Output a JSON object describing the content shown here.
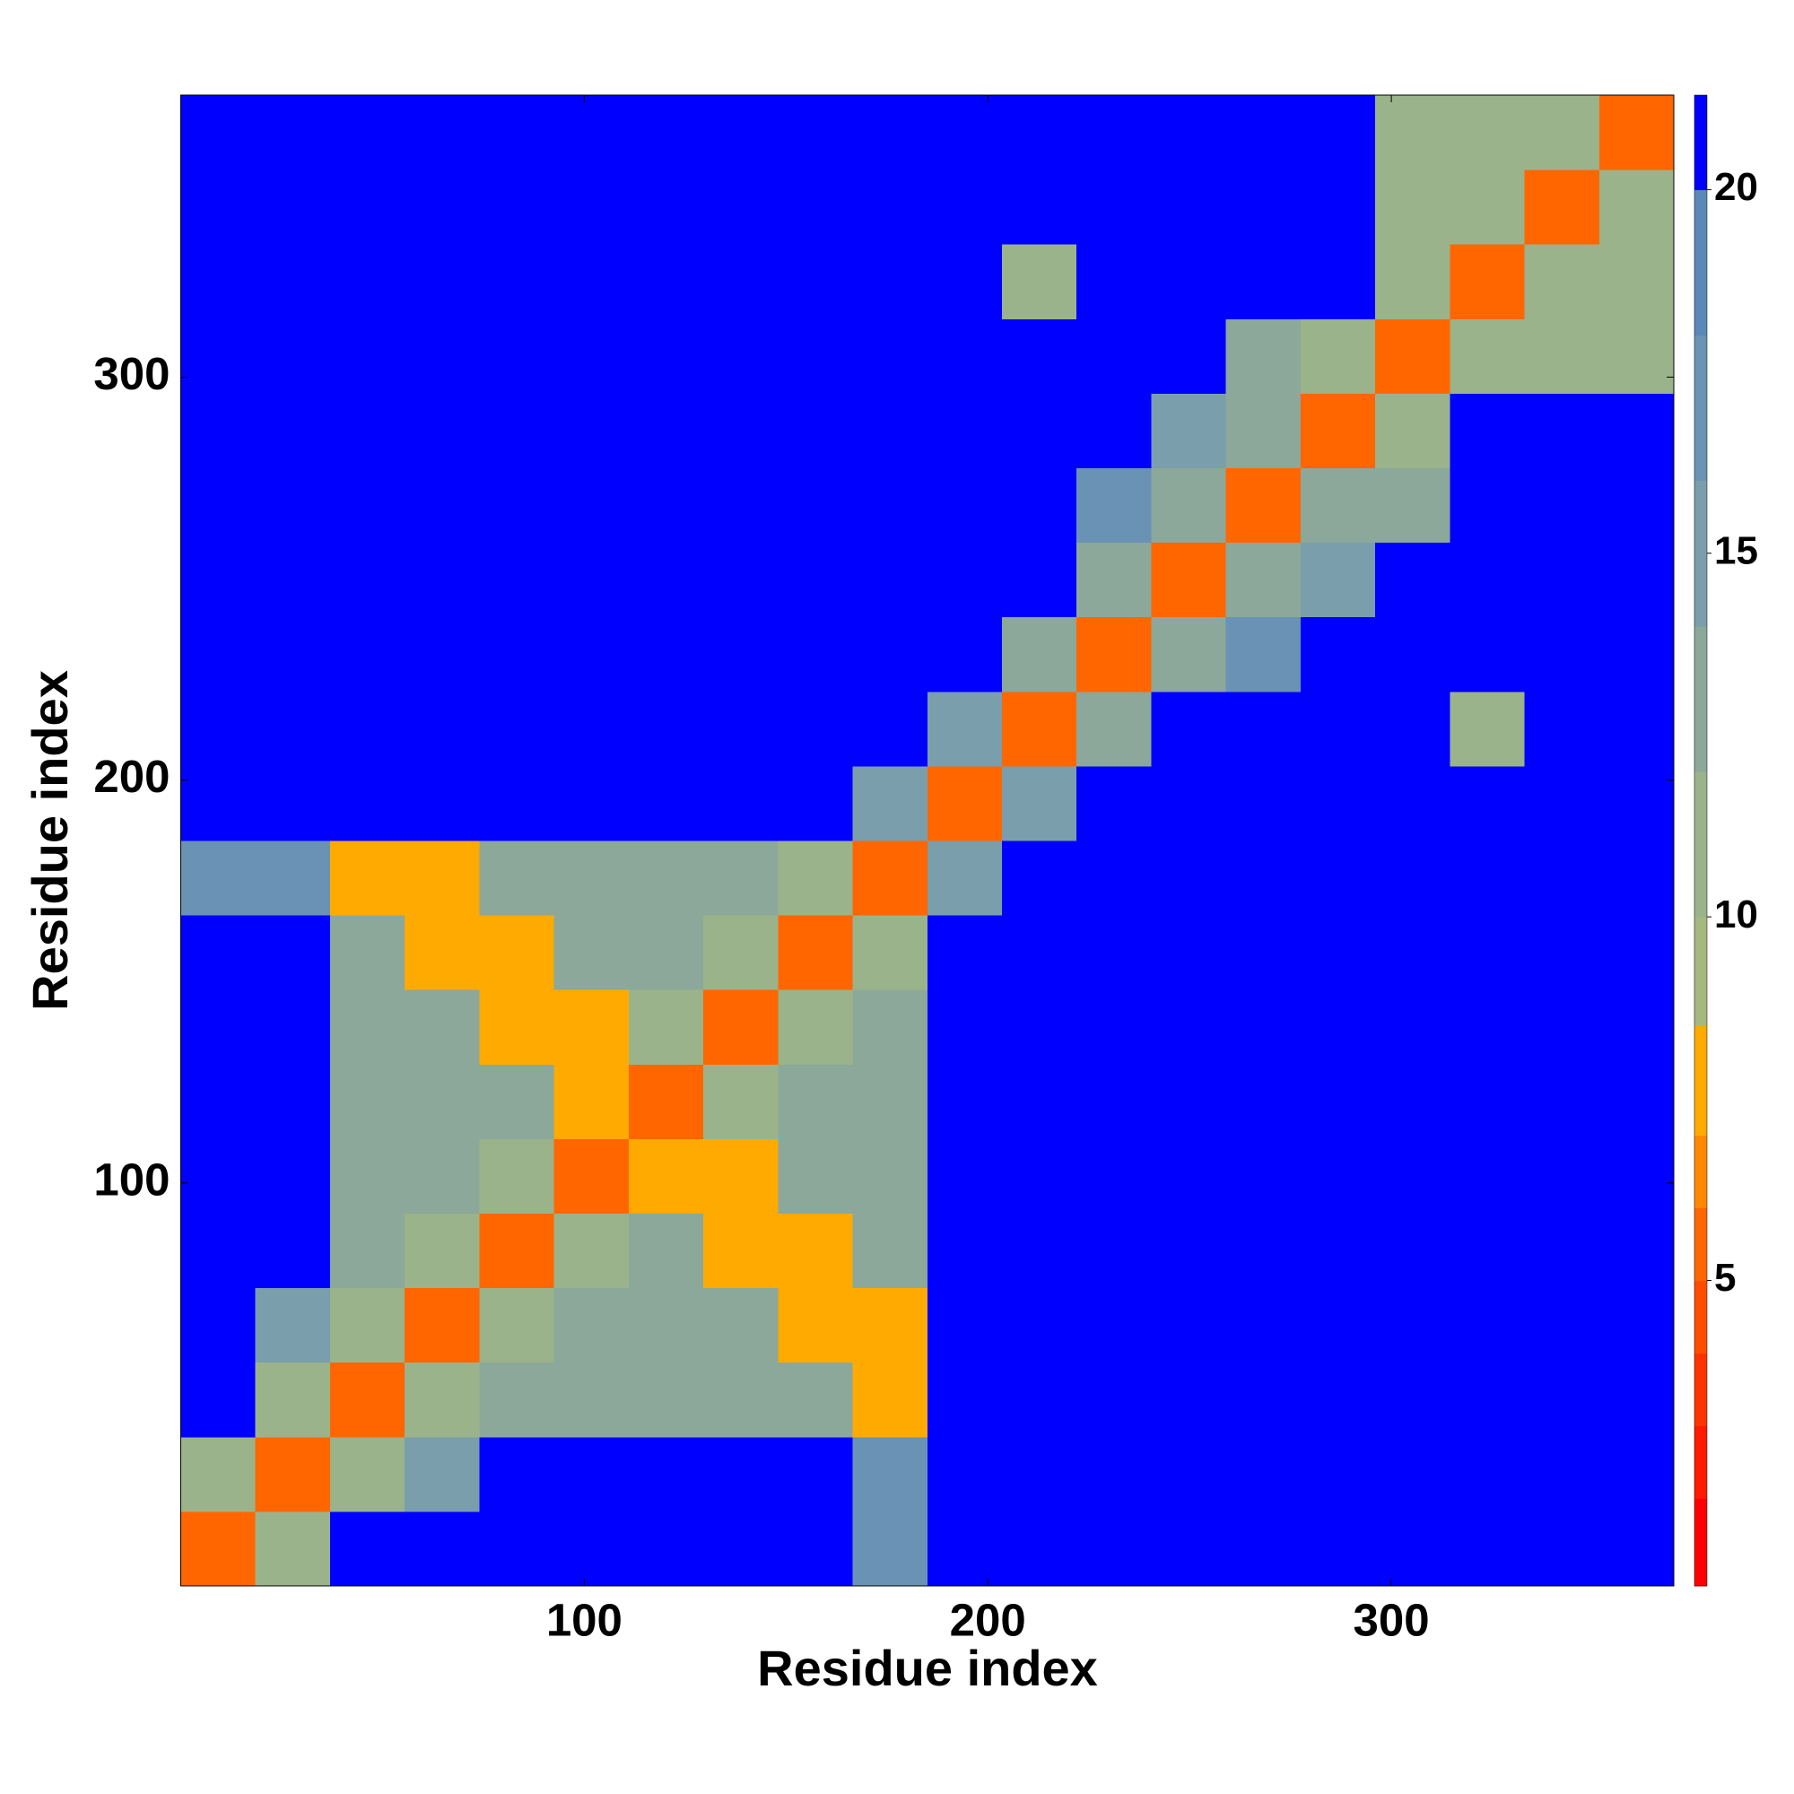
{
  "chart_data": {
    "type": "heatmap",
    "xlabel": "Residue index",
    "ylabel": "Residue index",
    "xbins": [
      0,
      18.5,
      37,
      55.5,
      74,
      92.5,
      111,
      129.5,
      148,
      166.5,
      185,
      203.5,
      222,
      240.5,
      259,
      277.5,
      296,
      314.5,
      333,
      351.5,
      370
    ],
    "ybins": [
      0,
      18.5,
      37,
      55.5,
      74,
      92.5,
      111,
      129.5,
      148,
      166.5,
      185,
      203.5,
      222,
      240.5,
      259,
      277.5,
      296,
      314.5,
      333,
      351.5,
      370
    ],
    "xlim": [
      0,
      370
    ],
    "ylim": [
      0,
      370
    ],
    "xticks": [
      100,
      200,
      300
    ],
    "yticks": [
      100,
      200,
      300
    ],
    "clim": [
      0.8,
      21.3
    ],
    "cticks": [
      5,
      10,
      15,
      20
    ],
    "colorscale": [
      {
        "max": 2,
        "color": "#ff0000"
      },
      {
        "max": 3,
        "color": "#ff1a00"
      },
      {
        "max": 4,
        "color": "#ff3300"
      },
      {
        "max": 5,
        "color": "#ff4d00"
      },
      {
        "max": 6,
        "color": "#ff6600"
      },
      {
        "max": 7,
        "color": "#ff8800"
      },
      {
        "max": 8.5,
        "color": "#ffaa00"
      },
      {
        "max": 10,
        "color": "#a6b87e"
      },
      {
        "max": 12,
        "color": "#9bb38a"
      },
      {
        "max": 14,
        "color": "#8ba89a"
      },
      {
        "max": 16,
        "color": "#7a9eac"
      },
      {
        "max": 18,
        "color": "#6a92b4"
      },
      {
        "max": 20,
        "color": "#5a88b8"
      },
      {
        "max": 21.3,
        "color": "#0000ff"
      }
    ],
    "z": [
      [
        6,
        12,
        21,
        21,
        21,
        21,
        21,
        21,
        21,
        18,
        21,
        21,
        21,
        21,
        21,
        21,
        21,
        21,
        21,
        21
      ],
      [
        12,
        6,
        12,
        15,
        21,
        21,
        21,
        21,
        21,
        18,
        21,
        21,
        21,
        21,
        21,
        21,
        21,
        21,
        21,
        21
      ],
      [
        21,
        12,
        6,
        12,
        13,
        13,
        13,
        13,
        13,
        8,
        21,
        21,
        21,
        21,
        21,
        21,
        21,
        21,
        21,
        21
      ],
      [
        21,
        15,
        12,
        6,
        12,
        13,
        13,
        13,
        8,
        8,
        21,
        21,
        21,
        21,
        21,
        21,
        21,
        21,
        21,
        21
      ],
      [
        21,
        21,
        13,
        12,
        6,
        12,
        13,
        8,
        8,
        13,
        21,
        21,
        21,
        21,
        21,
        21,
        21,
        21,
        21,
        21
      ],
      [
        21,
        21,
        13,
        13,
        12,
        6,
        8,
        8,
        13,
        13,
        21,
        21,
        21,
        21,
        21,
        21,
        21,
        21,
        21,
        21
      ],
      [
        21,
        21,
        13,
        13,
        13,
        8,
        6,
        12,
        13,
        13,
        21,
        21,
        21,
        21,
        21,
        21,
        21,
        21,
        21,
        21
      ],
      [
        21,
        21,
        13,
        13,
        8,
        8,
        12,
        6,
        12,
        13,
        21,
        21,
        21,
        21,
        21,
        21,
        21,
        21,
        21,
        21
      ],
      [
        21,
        21,
        13,
        8,
        8,
        13,
        13,
        12,
        6,
        12,
        21,
        21,
        21,
        21,
        21,
        21,
        21,
        21,
        21,
        21
      ],
      [
        18,
        18,
        8,
        8,
        13,
        13,
        13,
        13,
        12,
        6,
        15,
        21,
        21,
        21,
        21,
        21,
        21,
        21,
        21,
        21
      ],
      [
        21,
        21,
        21,
        21,
        21,
        21,
        21,
        21,
        21,
        15,
        6,
        15,
        21,
        21,
        21,
        21,
        21,
        21,
        21,
        21
      ],
      [
        21,
        21,
        21,
        21,
        21,
        21,
        21,
        21,
        21,
        21,
        15,
        6,
        14,
        21,
        21,
        21,
        21,
        12,
        21,
        21
      ],
      [
        21,
        21,
        21,
        21,
        21,
        21,
        21,
        21,
        21,
        21,
        21,
        14,
        6,
        14,
        17,
        21,
        21,
        21,
        21,
        21
      ],
      [
        21,
        21,
        21,
        21,
        21,
        21,
        21,
        21,
        21,
        21,
        21,
        21,
        14,
        6,
        14,
        16,
        21,
        21,
        21,
        21
      ],
      [
        21,
        21,
        21,
        21,
        21,
        21,
        21,
        21,
        21,
        21,
        21,
        21,
        17,
        14,
        6,
        14,
        14,
        21,
        21,
        21
      ],
      [
        21,
        21,
        21,
        21,
        21,
        21,
        21,
        21,
        21,
        21,
        21,
        21,
        21,
        16,
        14,
        6,
        11,
        21,
        21,
        21
      ],
      [
        21,
        21,
        21,
        21,
        21,
        21,
        21,
        21,
        21,
        21,
        21,
        21,
        21,
        21,
        14,
        11,
        6,
        11,
        12,
        12
      ],
      [
        21,
        21,
        21,
        21,
        21,
        21,
        21,
        21,
        21,
        21,
        21,
        12,
        21,
        21,
        21,
        21,
        11,
        6,
        11,
        12
      ],
      [
        21,
        21,
        21,
        21,
        21,
        21,
        21,
        21,
        21,
        21,
        21,
        21,
        21,
        21,
        21,
        21,
        12,
        11,
        6,
        11
      ],
      [
        21,
        21,
        21,
        21,
        21,
        21,
        21,
        21,
        21,
        21,
        21,
        21,
        21,
        21,
        21,
        21,
        12,
        12,
        11,
        6
      ]
    ]
  }
}
